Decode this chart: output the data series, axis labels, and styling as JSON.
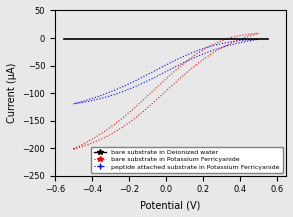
{
  "title": "",
  "xlabel": "Potential (V)",
  "ylabel": "Current (μA)",
  "xlim": [
    -0.6,
    0.65
  ],
  "ylim": [
    -250,
    50
  ],
  "xticks": [
    -0.6,
    -0.4,
    -0.2,
    0.0,
    0.2,
    0.4,
    0.6
  ],
  "yticks": [
    -250,
    -200,
    -150,
    -100,
    -50,
    0,
    50
  ],
  "background_color": "#f0f0f0",
  "legend_labels": [
    "bare substrate in Deionized water",
    "bare substrate in Potassium Ferricyanide",
    "peptide attached substrate in Potassium Ferricyanide"
  ],
  "legend_colors": [
    "black",
    "red",
    "blue"
  ],
  "legend_markers": [
    "*",
    "*",
    "+"
  ]
}
